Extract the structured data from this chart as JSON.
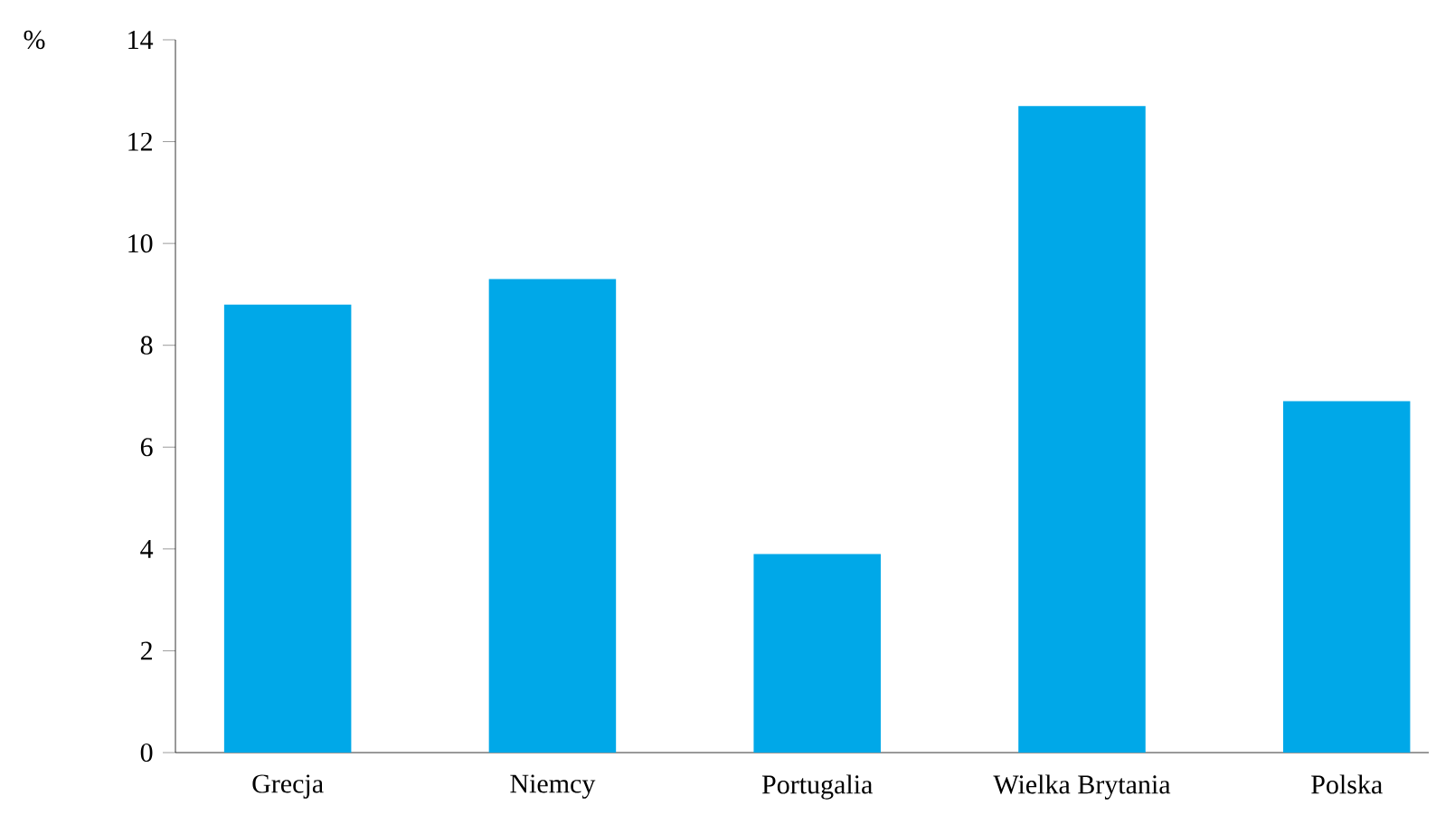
{
  "chart_data": {
    "type": "bar",
    "ylabel": "%",
    "categories": [
      "Grecja",
      "Niemcy",
      "Portugalia",
      "Wielka Brytania",
      "Polska"
    ],
    "values": [
      8.8,
      9.3,
      3.9,
      12.7,
      6.9
    ],
    "color": "#00a8e8",
    "ylim": [
      0,
      14
    ],
    "yticks": [
      0,
      2,
      4,
      6,
      8,
      10,
      12,
      14
    ],
    "grid": false
  }
}
